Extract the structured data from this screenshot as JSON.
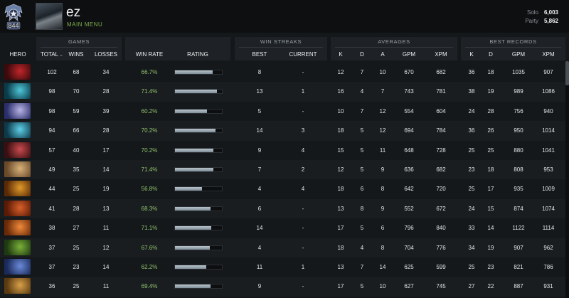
{
  "profile": {
    "rank_number": "844",
    "player_name": "ez",
    "main_menu_label": "MAIN MENU",
    "medal_icon": "rank-medal-icon"
  },
  "mmr": {
    "solo_label": "Solo",
    "solo_value": "6,003",
    "party_label": "Party",
    "party_value": "5,862"
  },
  "groups": {
    "games": "GAMES",
    "win_streaks": "WIN STREAKS",
    "averages": "AVERAGES",
    "best_records": "BEST RECORDS"
  },
  "columns": {
    "hero": "HERO",
    "total": "TOTAL",
    "wins": "WINS",
    "losses": "LOSSES",
    "win_rate": "WIN RATE",
    "rating": "RATING",
    "best": "BEST",
    "current": "CURRENT",
    "avg_k": "K",
    "avg_d": "D",
    "avg_a": "A",
    "avg_gpm": "GPM",
    "avg_xpm": "XPM",
    "rec_k": "K",
    "rec_d": "D",
    "rec_gpm": "GPM",
    "rec_xpm": "XPM"
  },
  "colors": {
    "win_rate": "#8fc26b",
    "accent": "#7fae4a"
  },
  "rows": [
    {
      "hero_colors": [
        "#3a0a0c",
        "#c2262a"
      ],
      "total": "102",
      "wins": "68",
      "losses": "34",
      "win_rate": "66.7%",
      "rating": 0.8,
      "best": "8",
      "current": "-",
      "k": "12",
      "d": "7",
      "a": "10",
      "gpm": "670",
      "xpm": "682",
      "rk": "36",
      "rd": "18",
      "rgpm": "1035",
      "rxpm": "907"
    },
    {
      "hero_colors": [
        "#0a3b4a",
        "#4fc6d8"
      ],
      "total": "98",
      "wins": "70",
      "losses": "28",
      "win_rate": "71.4%",
      "rating": 0.9,
      "best": "13",
      "current": "1",
      "k": "16",
      "d": "4",
      "a": "7",
      "gpm": "743",
      "xpm": "781",
      "rk": "38",
      "rd": "19",
      "rgpm": "989",
      "rxpm": "1086"
    },
    {
      "hero_colors": [
        "#2a2f6a",
        "#b9b3e6"
      ],
      "total": "98",
      "wins": "59",
      "losses": "39",
      "win_rate": "60.2%",
      "rating": 0.68,
      "best": "5",
      "current": "-",
      "k": "10",
      "d": "7",
      "a": "12",
      "gpm": "554",
      "xpm": "604",
      "rk": "24",
      "rd": "28",
      "rgpm": "756",
      "rxpm": "940"
    },
    {
      "hero_colors": [
        "#0d3a4a",
        "#5fd0e8"
      ],
      "total": "94",
      "wins": "66",
      "losses": "28",
      "win_rate": "70.2%",
      "rating": 0.86,
      "best": "14",
      "current": "3",
      "k": "18",
      "d": "5",
      "a": "12",
      "gpm": "694",
      "xpm": "784",
      "rk": "36",
      "rd": "26",
      "rgpm": "950",
      "rxpm": "1014"
    },
    {
      "hero_colors": [
        "#3a0f12",
        "#c84a4e"
      ],
      "total": "57",
      "wins": "40",
      "losses": "17",
      "win_rate": "70.2%",
      "rating": 0.82,
      "best": "9",
      "current": "4",
      "k": "15",
      "d": "5",
      "a": "11",
      "gpm": "648",
      "xpm": "728",
      "rk": "25",
      "rd": "25",
      "rgpm": "880",
      "rxpm": "1041"
    },
    {
      "hero_colors": [
        "#6a4a2a",
        "#d9b27a"
      ],
      "total": "49",
      "wins": "35",
      "losses": "14",
      "win_rate": "71.4%",
      "rating": 0.82,
      "best": "7",
      "current": "2",
      "k": "12",
      "d": "5",
      "a": "9",
      "gpm": "636",
      "xpm": "682",
      "rk": "23",
      "rd": "18",
      "rgpm": "808",
      "rxpm": "953"
    },
    {
      "hero_colors": [
        "#5a2a06",
        "#e09a2a"
      ],
      "total": "44",
      "wins": "25",
      "losses": "19",
      "win_rate": "56.8%",
      "rating": 0.58,
      "best": "4",
      "current": "4",
      "k": "18",
      "d": "6",
      "a": "8",
      "gpm": "642",
      "xpm": "720",
      "rk": "25",
      "rd": "17",
      "rgpm": "935",
      "rxpm": "1009"
    },
    {
      "hero_colors": [
        "#5a1a06",
        "#d8602a"
      ],
      "total": "41",
      "wins": "28",
      "losses": "13",
      "win_rate": "68.3%",
      "rating": 0.75,
      "best": "6",
      "current": "-",
      "k": "13",
      "d": "8",
      "a": "9",
      "gpm": "552",
      "xpm": "672",
      "rk": "24",
      "rd": "15",
      "rgpm": "874",
      "rxpm": "1074"
    },
    {
      "hero_colors": [
        "#6a2a08",
        "#f08a3a"
      ],
      "total": "38",
      "wins": "27",
      "losses": "11",
      "win_rate": "71.1%",
      "rating": 0.78,
      "best": "14",
      "current": "-",
      "k": "17",
      "d": "5",
      "a": "6",
      "gpm": "796",
      "xpm": "840",
      "rk": "33",
      "rd": "14",
      "rgpm": "1122",
      "rxpm": "1114"
    },
    {
      "hero_colors": [
        "#1f3a10",
        "#7ab03a"
      ],
      "total": "37",
      "wins": "25",
      "losses": "12",
      "win_rate": "67.6%",
      "rating": 0.74,
      "best": "4",
      "current": "-",
      "k": "18",
      "d": "4",
      "a": "8",
      "gpm": "704",
      "xpm": "776",
      "rk": "34",
      "rd": "19",
      "rgpm": "907",
      "rxpm": "962"
    },
    {
      "hero_colors": [
        "#1a2a5a",
        "#6a8ad8"
      ],
      "total": "37",
      "wins": "23",
      "losses": "14",
      "win_rate": "62.2%",
      "rating": 0.66,
      "best": "11",
      "current": "1",
      "k": "13",
      "d": "7",
      "a": "14",
      "gpm": "625",
      "xpm": "599",
      "rk": "25",
      "rd": "23",
      "rgpm": "821",
      "rxpm": "786"
    },
    {
      "hero_colors": [
        "#5a3a10",
        "#d8a04a"
      ],
      "total": "36",
      "wins": "25",
      "losses": "11",
      "win_rate": "69.4%",
      "rating": 0.76,
      "best": "9",
      "current": "-",
      "k": "17",
      "d": "5",
      "a": "10",
      "gpm": "627",
      "xpm": "745",
      "rk": "27",
      "rd": "22",
      "rgpm": "887",
      "rxpm": "931"
    }
  ]
}
